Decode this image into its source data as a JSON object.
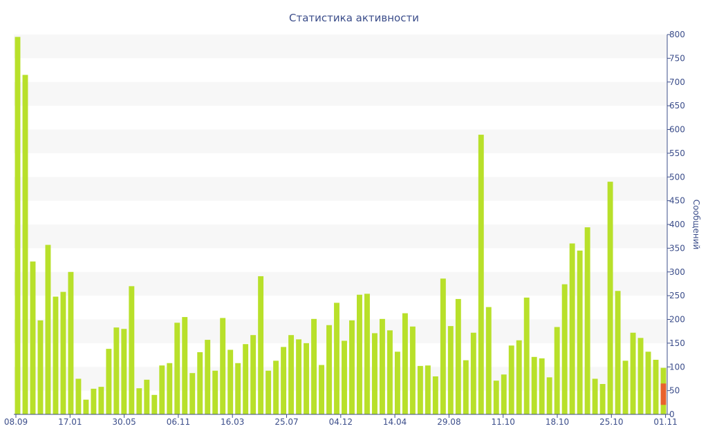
{
  "chart_data": {
    "type": "bar",
    "title": "Статистика активности",
    "ylabel": "Сообщений",
    "ylim": [
      0,
      800
    ],
    "yticks": [
      0,
      50,
      100,
      150,
      200,
      250,
      300,
      350,
      400,
      450,
      500,
      550,
      600,
      650,
      700,
      750,
      800
    ],
    "xtick_labels": [
      "08.09",
      "17.01",
      "30.05",
      "06.11",
      "16.03",
      "25.07",
      "04.12",
      "14.04",
      "29.08",
      "11.10",
      "18.10",
      "25.10",
      "01.11"
    ],
    "colors": {
      "bar": "#b8e02a",
      "highlight": "#e8622c",
      "axis": "#3b4d8a",
      "band": "#f7f7f7"
    },
    "values": [
      795,
      715,
      322,
      198,
      357,
      248,
      258,
      300,
      75,
      31,
      54,
      58,
      138,
      183,
      180,
      270,
      55,
      73,
      41,
      103,
      108,
      193,
      205,
      87,
      131,
      157,
      92,
      203,
      136,
      108,
      148,
      167,
      291,
      92,
      113,
      142,
      167,
      158,
      150,
      201,
      104,
      188,
      235,
      155,
      198,
      252,
      254,
      171,
      201,
      177,
      132,
      213,
      185,
      102,
      103,
      80,
      286,
      186,
      243,
      114,
      172,
      589,
      226,
      71,
      84,
      145,
      156,
      246,
      121,
      118,
      78,
      184,
      274,
      360,
      345,
      394,
      75,
      64,
      490,
      260,
      113,
      172,
      161,
      132,
      115,
      98
    ],
    "highlight": {
      "value": 65,
      "label": ""
    }
  }
}
